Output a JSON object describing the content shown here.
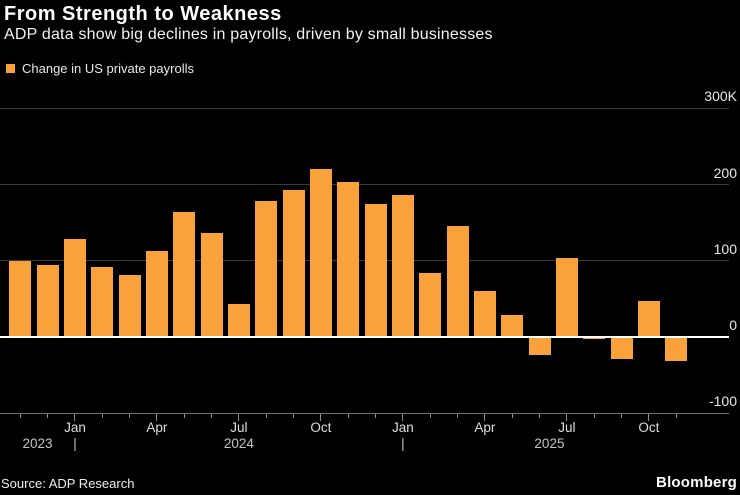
{
  "header": {
    "title": "From Strength to Weakness",
    "subtitle": "ADP data show big declines in payrolls, driven by small businesses"
  },
  "legend": {
    "label": "Change in US private payrolls"
  },
  "chart_data": {
    "type": "bar",
    "title": "From Strength to Weakness",
    "subtitle": "ADP data show big declines in payrolls, driven by small businesses",
    "series_name": "Change in US private payrolls",
    "unit": "thousands of jobs",
    "categories": [
      "Nov 2023",
      "Dec 2023",
      "Jan 2024",
      "Feb 2024",
      "Mar 2024",
      "Apr 2024",
      "May 2024",
      "Jun 2024",
      "Jul 2024",
      "Aug 2024",
      "Sep 2024",
      "Oct 2024",
      "Nov 2024",
      "Dec 2024",
      "Jan 2025",
      "Feb 2025",
      "Mar 2025",
      "Apr 2025",
      "May 2025",
      "Jun 2025",
      "Jul 2025",
      "Aug 2025",
      "Sep 2025",
      "Oct 2025",
      "Nov 2025"
    ],
    "values": [
      100,
      95,
      129,
      92,
      82,
      113,
      164,
      136,
      43,
      179,
      193,
      220,
      203,
      175,
      186,
      84,
      146,
      60,
      29,
      -23,
      104,
      -3,
      -29,
      47,
      -32
    ],
    "ylim": [
      -100,
      300
    ],
    "y_ticks": [
      300,
      200,
      100,
      0,
      -100
    ],
    "y_tick_labels": [
      "300K",
      "200",
      "100",
      "0",
      "-100"
    ],
    "x_major_ticks": {
      "indices": [
        2,
        5,
        8,
        11,
        14,
        17,
        20,
        23
      ],
      "labels": [
        "Jan",
        "Apr",
        "Jul",
        "Oct",
        "Jan",
        "Apr",
        "Jul",
        "Oct"
      ]
    },
    "year_labels": [
      "2023",
      "2024",
      "2025"
    ],
    "year_separator_glyph": "|",
    "grid": true,
    "zero_line": true,
    "legend_position": "top-left",
    "xlabel": "",
    "ylabel": ""
  },
  "footer": {
    "source": "Source: ADP Research",
    "brand": "Bloomberg"
  },
  "colors": {
    "background": "#000000",
    "bar": "#F9A13B",
    "gridline": "#3a3a3a",
    "axis_line": "#707070",
    "tick": "#8a8a8a",
    "zero_line": "#ffffff",
    "title_text": "#ffffff",
    "subtitle_text": "#f2f2f2",
    "legend_text": "#e9e9e9",
    "y_label_text": "#e8e8e8",
    "month_label_text": "#dedede",
    "year_label_text": "#c4c4c4",
    "source_text": "#ececec"
  }
}
